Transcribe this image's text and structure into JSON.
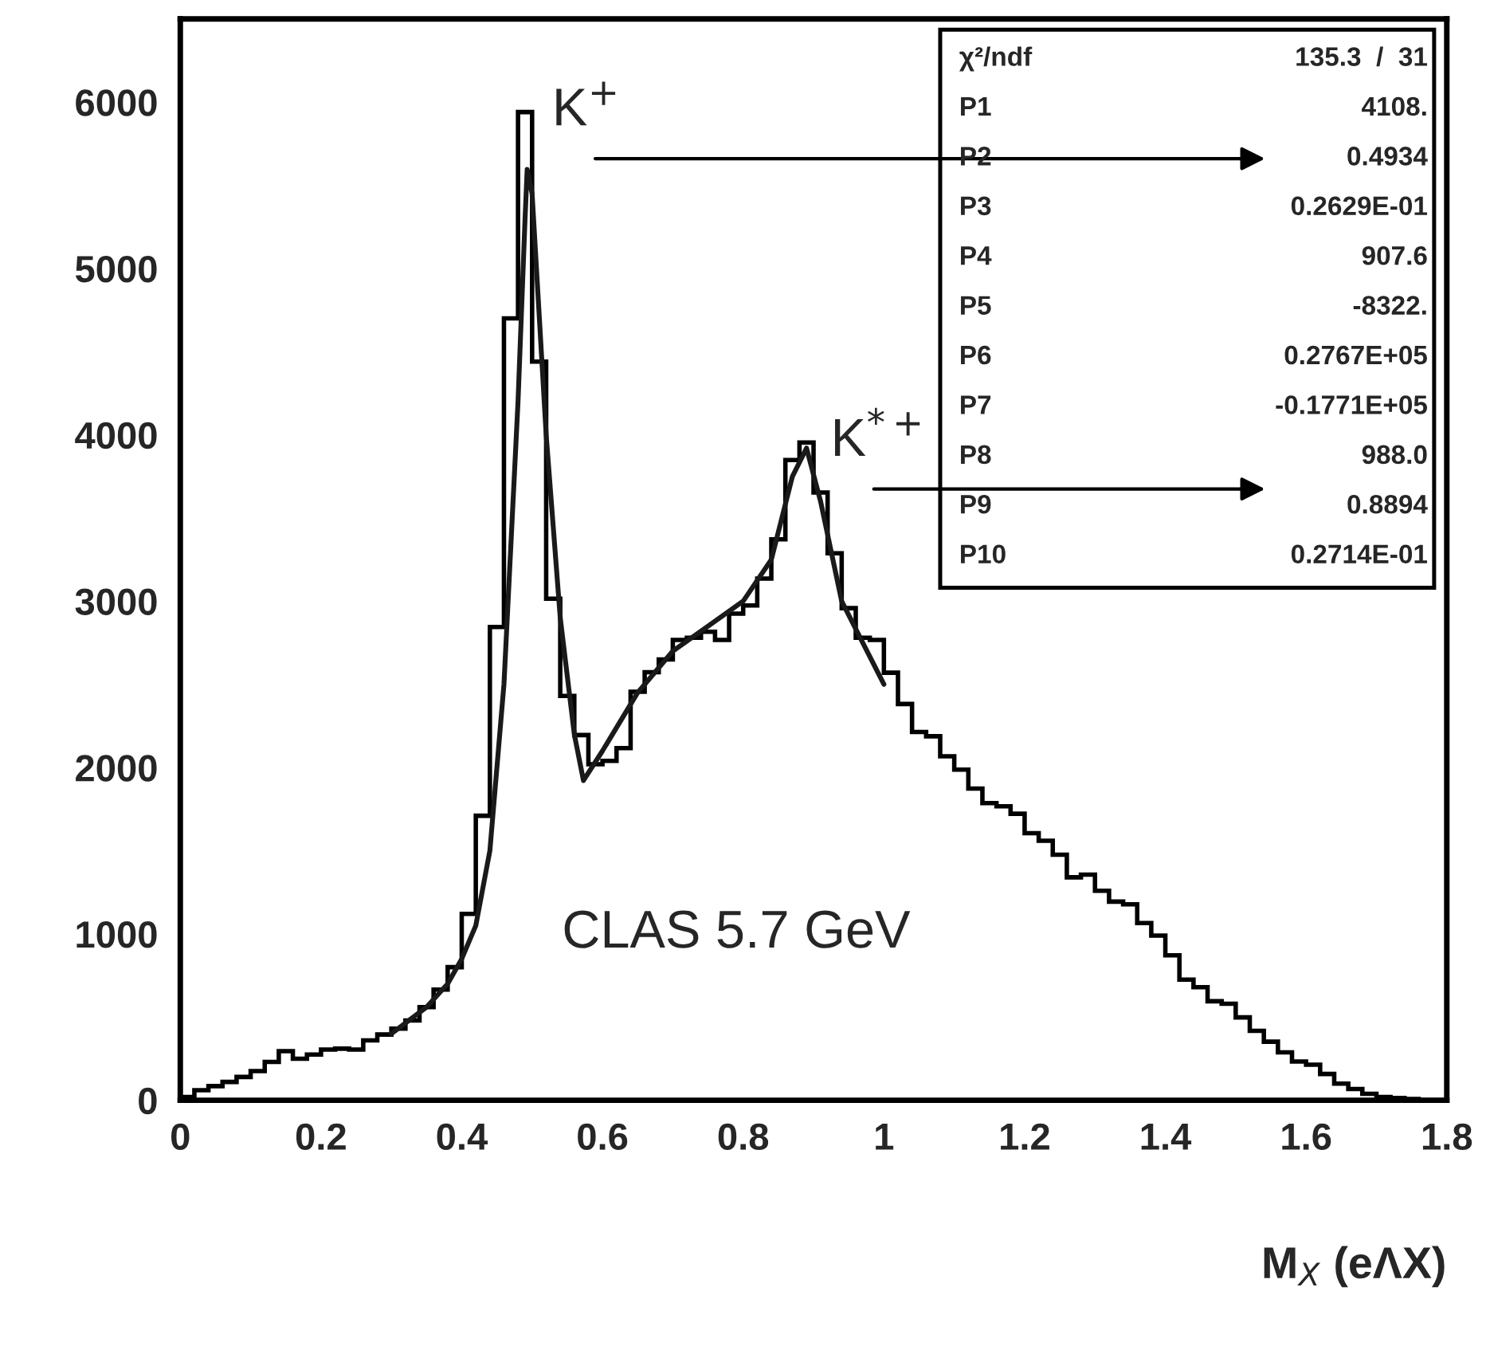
{
  "chart_data": {
    "type": "histogram",
    "color": "#000000",
    "bins": [
      0,
      0.02,
      0.04,
      0.06,
      0.08,
      0.1,
      0.12,
      0.14,
      0.16,
      0.18,
      0.2,
      0.22,
      0.24,
      0.26,
      0.28,
      0.3,
      0.32,
      0.34,
      0.36,
      0.38,
      0.4,
      0.42,
      0.44,
      0.46,
      0.48,
      0.5,
      0.52,
      0.54,
      0.56,
      0.58,
      0.6,
      0.62,
      0.64,
      0.66,
      0.68,
      0.7,
      0.72,
      0.74,
      0.76,
      0.78,
      0.8,
      0.82,
      0.84,
      0.86,
      0.88,
      0.9,
      0.92,
      0.94,
      0.96,
      0.98,
      1,
      1.02,
      1.04,
      1.06,
      1.08,
      1.1,
      1.12,
      1.14,
      1.16,
      1.18,
      1.2,
      1.22,
      1.24,
      1.26,
      1.28,
      1.3,
      1.32,
      1.34,
      1.36,
      1.38,
      1.4,
      1.42,
      1.44,
      1.46,
      1.48,
      1.5,
      1.52,
      1.54,
      1.56,
      1.58,
      1.6,
      1.62,
      1.64,
      1.66,
      1.68,
      1.7,
      1.72,
      1.74,
      1.76,
      1.78,
      1.8
    ],
    "values": [
      20,
      60,
      85,
      110,
      140,
      175,
      230,
      295,
      250,
      275,
      305,
      310,
      305,
      360,
      395,
      430,
      480,
      560,
      665,
      800,
      1120,
      1710,
      2845,
      4700,
      5940,
      4440,
      3015,
      2430,
      2195,
      2020,
      2040,
      2117,
      2456,
      2573,
      2650,
      2767,
      2780,
      2816,
      2767,
      2925,
      2974,
      3136,
      3372,
      3848,
      3954,
      3653,
      3288,
      2958,
      2780,
      2767,
      2570,
      2382,
      2214,
      2188,
      2068,
      1987,
      1874,
      1786,
      1767,
      1722,
      1605,
      1560,
      1476,
      1340,
      1356,
      1259,
      1194,
      1178,
      1065,
      990,
      871,
      725,
      680,
      595,
      580,
      498,
      417,
      352,
      288,
      233,
      214,
      158,
      100,
      68,
      39,
      19,
      13,
      8,
      0,
      0
    ],
    "series": [
      {
        "type": "line",
        "color": "#1a1a1a",
        "x": [
          0.3,
          0.35,
          0.38,
          0.4,
          0.42,
          0.44,
          0.46,
          0.48,
          0.49,
          0.493,
          0.5,
          0.52,
          0.54,
          0.56,
          0.573,
          0.6,
          0.65,
          0.7,
          0.75,
          0.8,
          0.84,
          0.87,
          0.89,
          0.91,
          0.94,
          0.97,
          1.0
        ],
        "values": [
          400,
          560,
          700,
          850,
          1050,
          1500,
          2500,
          4200,
          5300,
          5595,
          5450,
          4000,
          2900,
          2200,
          1922,
          2100,
          2450,
          2700,
          2850,
          3000,
          3250,
          3750,
          3920,
          3600,
          3000,
          2750,
          2500
        ]
      }
    ],
    "xlabel": "M$_{X}$ (eΛX)",
    "xlim": [
      0,
      1.8
    ],
    "xticks": [
      0,
      0.2,
      0.4,
      0.6,
      0.8,
      1,
      1.2,
      1.4,
      1.6,
      1.8
    ],
    "ylim": [
      0,
      6500
    ],
    "yticks": [
      0,
      1000,
      2000,
      3000,
      4000,
      5000,
      6000
    ],
    "annotations": [
      {
        "text": "K$^{+}$",
        "x": 0.4934,
        "y": 5940
      },
      {
        "text": "K$^{*+}$",
        "x": 0.8894,
        "y": 3954
      },
      "CLAS 5.7 GeV",
      "χ²/ndf 135.3  /  31",
      "P1 4108.",
      "P2 0.4934",
      "P3 0.2629E-01",
      "P4 907.6",
      "P5 -8322.",
      "P6 0.2767E+05",
      "P7 -0.1771E+05",
      "P8 988.0",
      "P9 0.8894",
      "P10 0.2714E-01"
    ]
  }
}
